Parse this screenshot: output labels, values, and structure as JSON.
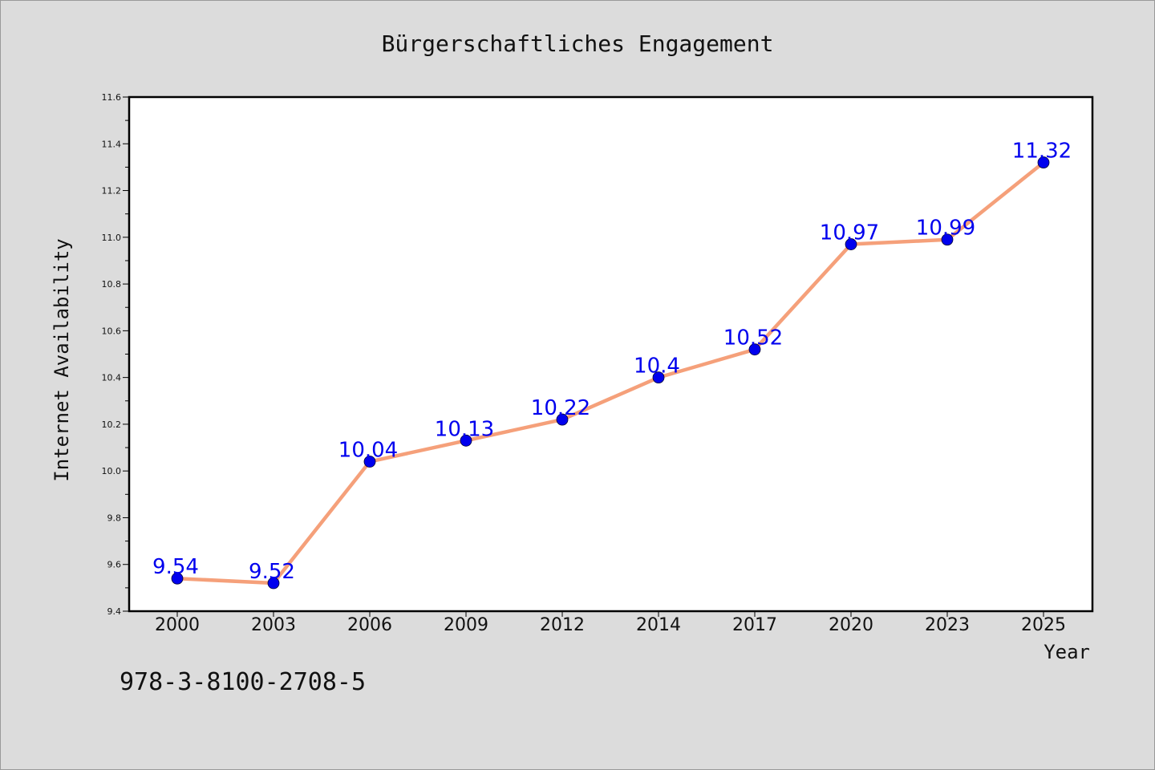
{
  "chart_data": {
    "type": "line",
    "title": "Bürgerschaftliches Engagement",
    "xlabel": "Year",
    "ylabel": "Internet Availability",
    "categories": [
      "2000",
      "2003",
      "2006",
      "2009",
      "2012",
      "2014",
      "2017",
      "2020",
      "2023",
      "2025"
    ],
    "series": [
      {
        "values": [
          9.54,
          9.52,
          10.04,
          10.13,
          10.22,
          10.4,
          10.52,
          10.97,
          10.99,
          11.32
        ],
        "line_color": "#f5a07a",
        "marker_color": "#0000ee"
      }
    ],
    "ylim": [
      9.4,
      11.6
    ],
    "yticks": [
      "9.4",
      "9.6",
      "9.8",
      "10.0",
      "10.2",
      "10.4",
      "10.6",
      "10.8",
      "11.0",
      "11.2",
      "11.4",
      "11.6"
    ],
    "data_labels": [
      "9.54",
      "9.52",
      "10.04",
      "10.13",
      "10.22",
      "10.4",
      "10.52",
      "10.97",
      "10.99",
      "11.32"
    ],
    "grid": false,
    "legend": "none"
  },
  "footer": {
    "code": "978-3-8100-2708-5"
  }
}
